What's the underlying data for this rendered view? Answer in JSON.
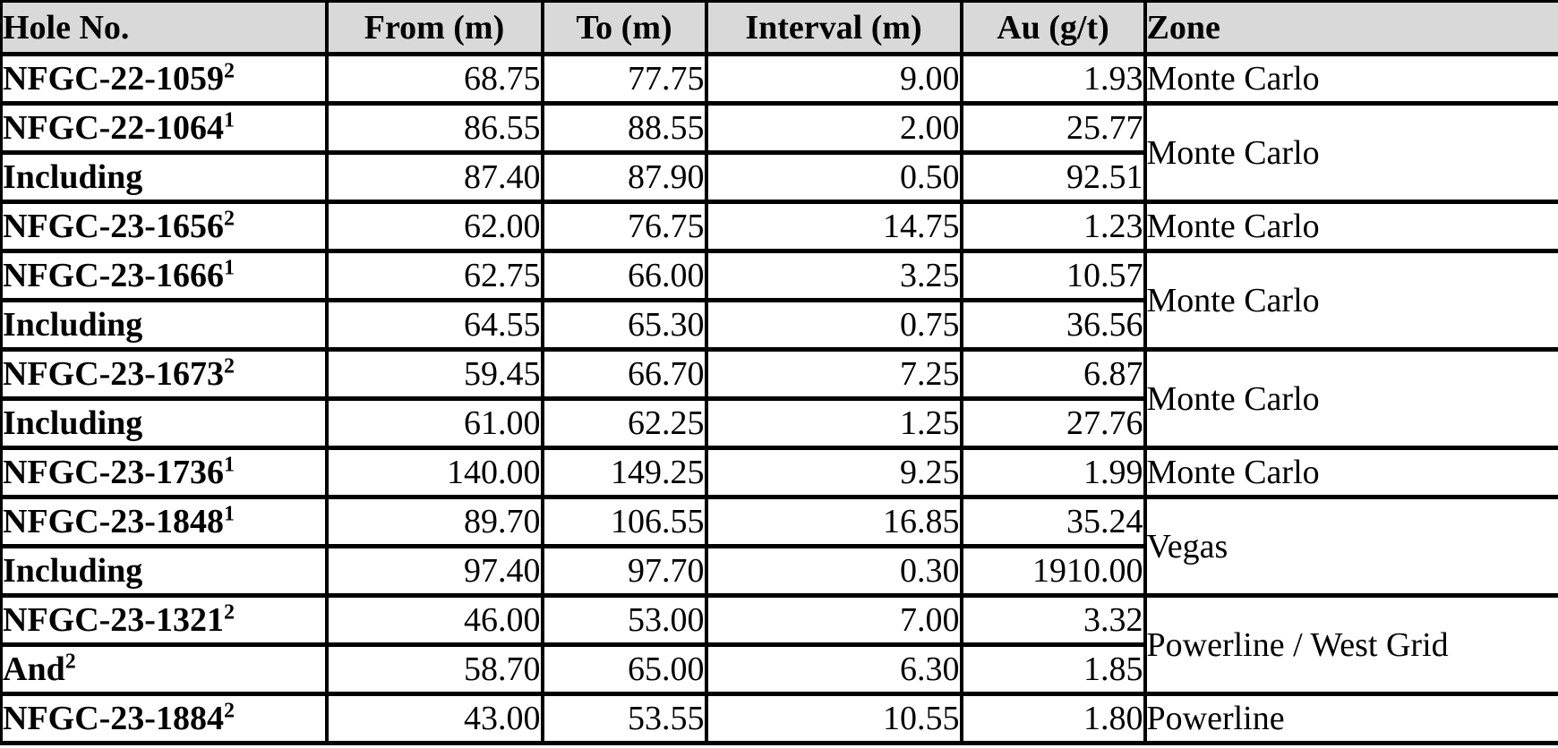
{
  "table": {
    "headers": [
      {
        "label": "Hole No.",
        "align": "left"
      },
      {
        "label": "From (m)",
        "align": "center"
      },
      {
        "label": "To (m)",
        "align": "center"
      },
      {
        "label": "Interval (m)",
        "align": "center"
      },
      {
        "label": "Au (g/t)",
        "align": "center"
      },
      {
        "label": "Zone",
        "align": "left"
      }
    ],
    "colors": {
      "header_bg": "#d9d9d9",
      "border": "#000000",
      "text": "#000000",
      "background": "#ffffff"
    },
    "rows": [
      {
        "hole": "NFGC-22-1059",
        "hole_sup": "2",
        "from": "68.75",
        "to": "77.75",
        "interval": "9.00",
        "au": "1.93",
        "zone": "Monte Carlo",
        "zone_rowspan": 1
      },
      {
        "hole": "NFGC-22-1064",
        "hole_sup": "1",
        "from": "86.55",
        "to": "88.55",
        "interval": "2.00",
        "au": "25.77",
        "zone": "Monte Carlo",
        "zone_rowspan": 2
      },
      {
        "hole": "Including",
        "hole_sup": "",
        "from": "87.40",
        "to": "87.90",
        "interval": "0.50",
        "au": "92.51"
      },
      {
        "hole": "NFGC-23-1656",
        "hole_sup": "2",
        "from": "62.00",
        "to": "76.75",
        "interval": "14.75",
        "au": "1.23",
        "zone": "Monte Carlo",
        "zone_rowspan": 1
      },
      {
        "hole": "NFGC-23-1666",
        "hole_sup": "1",
        "from": "62.75",
        "to": "66.00",
        "interval": "3.25",
        "au": "10.57",
        "zone": "Monte Carlo",
        "zone_rowspan": 2
      },
      {
        "hole": "Including",
        "hole_sup": "",
        "from": "64.55",
        "to": "65.30",
        "interval": "0.75",
        "au": "36.56"
      },
      {
        "hole": "NFGC-23-1673",
        "hole_sup": "2",
        "from": "59.45",
        "to": "66.70",
        "interval": "7.25",
        "au": "6.87",
        "zone": "Monte Carlo",
        "zone_rowspan": 2
      },
      {
        "hole": "Including",
        "hole_sup": "",
        "from": "61.00",
        "to": "62.25",
        "interval": "1.25",
        "au": "27.76"
      },
      {
        "hole": "NFGC-23-1736",
        "hole_sup": "1",
        "from": "140.00",
        "to": "149.25",
        "interval": "9.25",
        "au": "1.99",
        "zone": "Monte Carlo",
        "zone_rowspan": 1
      },
      {
        "hole": "NFGC-23-1848",
        "hole_sup": "1",
        "from": "89.70",
        "to": "106.55",
        "interval": "16.85",
        "au": "35.24",
        "zone": "Vegas",
        "zone_rowspan": 2
      },
      {
        "hole": "Including",
        "hole_sup": "",
        "from": "97.40",
        "to": "97.70",
        "interval": "0.30",
        "au": "1910.00"
      },
      {
        "hole": "NFGC-23-1321",
        "hole_sup": "2",
        "from": "46.00",
        "to": "53.00",
        "interval": "7.00",
        "au": "3.32",
        "zone": "Powerline / West Grid",
        "zone_rowspan": 2
      },
      {
        "hole": "And",
        "hole_sup": "2",
        "from": "58.70",
        "to": "65.00",
        "interval": "6.30",
        "au": "1.85"
      },
      {
        "hole": "NFGC-23-1884",
        "hole_sup": "2",
        "from": "43.00",
        "to": "53.55",
        "interval": "10.55",
        "au": "1.80",
        "zone": "Powerline",
        "zone_rowspan": 1
      }
    ]
  }
}
